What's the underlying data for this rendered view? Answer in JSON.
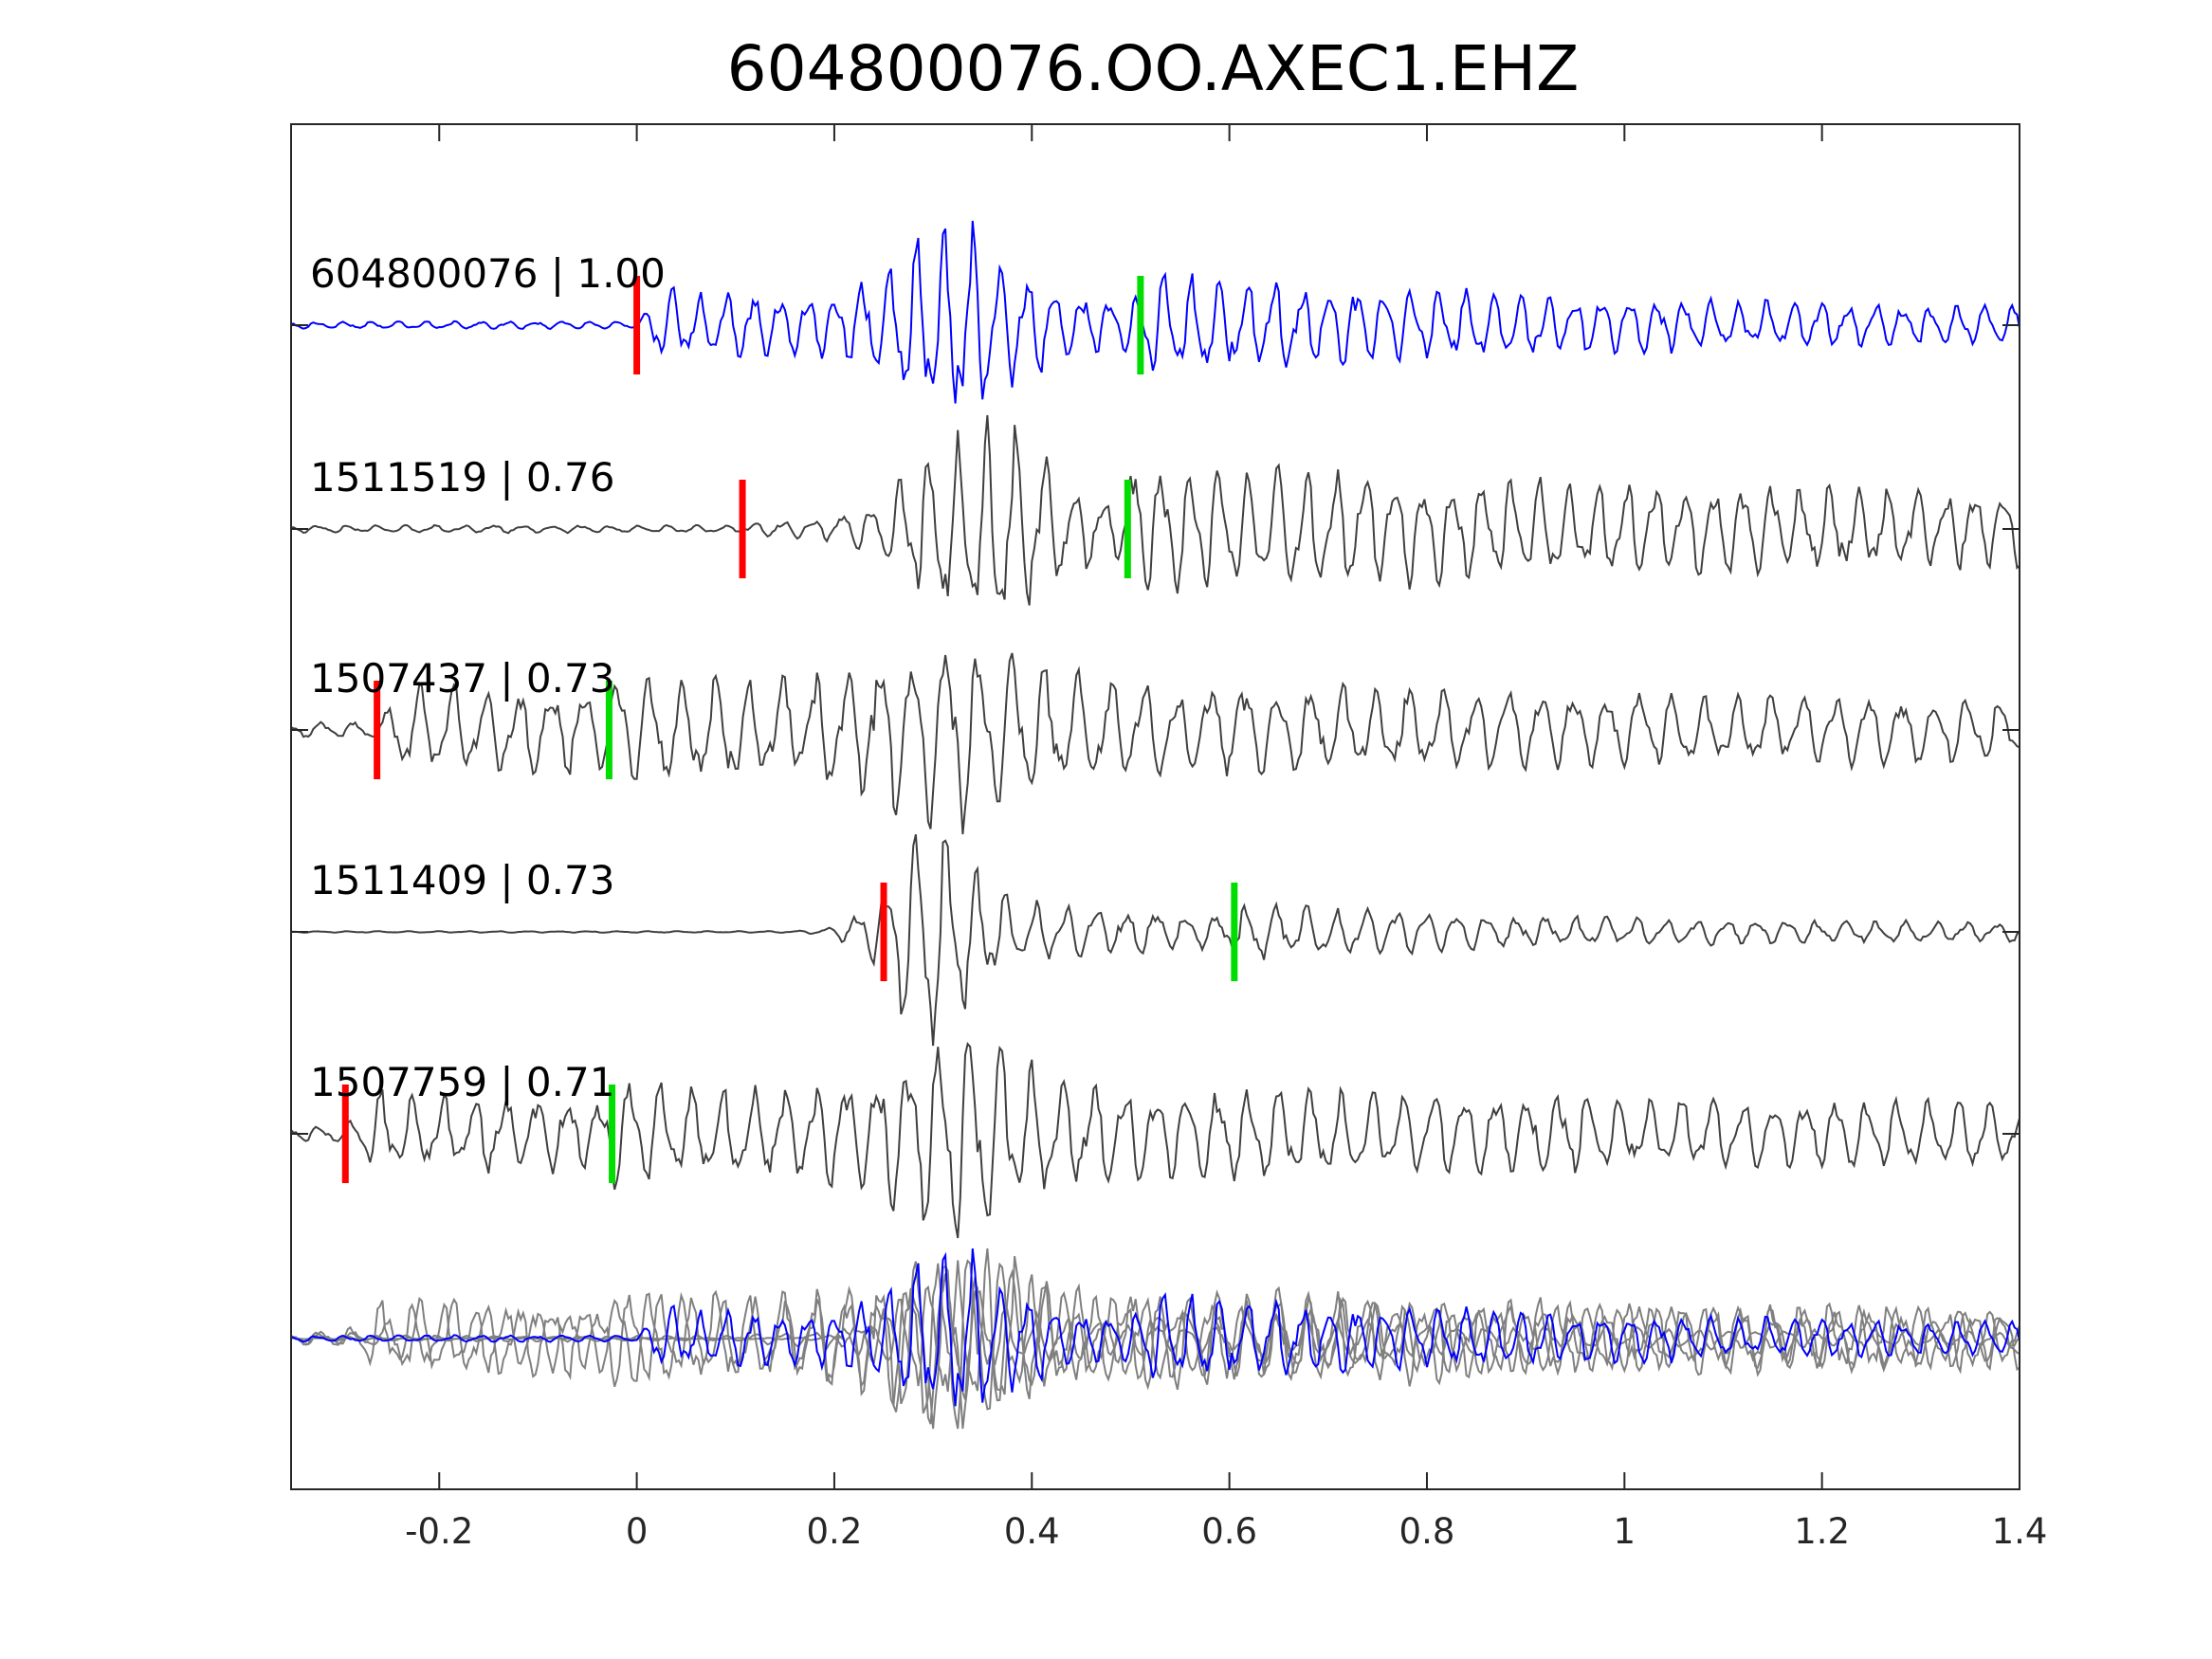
{
  "chart_data": {
    "type": "line",
    "title": "604800076.OO.AXEC1.EHZ",
    "xlabel": "",
    "ylabel": "",
    "xlim": [
      -0.35,
      1.4
    ],
    "xticks": [
      -0.2,
      0,
      0.2,
      0.4,
      0.6,
      0.8,
      1,
      1.2,
      1.4
    ],
    "xtick_labels": [
      "-0.2",
      "0",
      "0.2",
      "0.4",
      "0.6",
      "0.8",
      "1",
      "1.2",
      "1.4"
    ],
    "grid": false,
    "colors": {
      "reference_trace": "#0000ff",
      "correlated_trace": "#404040",
      "stack_trace": "#808080",
      "p_pick": "#ff0000",
      "s_pick": "#00dd00",
      "axes": "#262626"
    },
    "series": [
      {
        "name": "604800076 | 1.00",
        "label": "604800076 | 1.00",
        "role": "reference",
        "p_pick": 0.0,
        "s_pick": 0.51,
        "peak_time": 0.32
      },
      {
        "name": "1511519 | 0.76",
        "label": "1511519 | 0.76",
        "role": "correlated",
        "p_pick": 0.107,
        "s_pick": 0.497,
        "peak_time": 0.34
      },
      {
        "name": "1507437 | 0.73",
        "label": "1507437 | 0.73",
        "role": "correlated",
        "p_pick": -0.263,
        "s_pick": -0.028,
        "peak_time": 0.31
      },
      {
        "name": "1511409 | 0.73",
        "label": "1511409 | 0.73",
        "role": "correlated",
        "p_pick": 0.25,
        "s_pick": 0.605,
        "peak_time": 0.29
      },
      {
        "name": "1507759 | 0.71",
        "label": "1507759 | 0.71",
        "role": "correlated",
        "p_pick": -0.295,
        "s_pick": -0.025,
        "peak_time": 0.32
      }
    ],
    "overlay": {
      "description_hidden": true,
      "members": [
        "604800076 | 1.00",
        "1511519 | 0.76",
        "1507437 | 0.73",
        "1511409 | 0.73",
        "1507759 | 0.71"
      ]
    }
  }
}
